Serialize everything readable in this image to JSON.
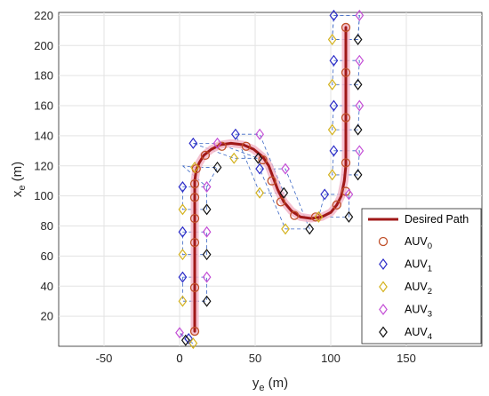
{
  "chart_data": {
    "type": "scatter",
    "xlabel": "y",
    "xlabel_sub": "e",
    "xlabel_unit": " (m)",
    "ylabel": "x",
    "ylabel_sub": "e",
    "ylabel_unit": " (m)",
    "xlim": [
      -80,
      200
    ],
    "ylim": [
      0,
      222
    ],
    "xticks": [
      -50,
      0,
      50,
      100,
      150
    ],
    "yticks": [
      20,
      40,
      60,
      80,
      100,
      120,
      140,
      160,
      180,
      200,
      220
    ],
    "grid": true,
    "legend_position": "bottom-right",
    "colors": {
      "path": "#a01818",
      "path_glow": "#f2b6c8",
      "auv0": "#c0502a",
      "auv1": "#2c2cc8",
      "auv2": "#d4b21f",
      "auv3": "#c44fd6",
      "auv4": "#111111",
      "link": "#3a66c4"
    },
    "desired_path": {
      "name": "Desired Path",
      "x": [
        10,
        10,
        10,
        10,
        10,
        10,
        11,
        13,
        16,
        21,
        27,
        34,
        42,
        49,
        55,
        59,
        62,
        65,
        69,
        74,
        80,
        87,
        94,
        100,
        104,
        107,
        109,
        110,
        110,
        110,
        110,
        110,
        110
      ],
      "y": [
        10,
        40,
        70,
        90,
        100,
        110,
        117,
        122,
        127,
        131,
        134,
        135,
        134,
        131,
        126,
        120,
        112,
        104,
        96,
        90,
        86,
        85,
        86,
        89,
        94,
        100,
        110,
        120,
        140,
        160,
        180,
        200,
        212
      ]
    },
    "series": [
      {
        "name": "AUV",
        "sub": "0",
        "marker": "circle",
        "x": [
          10,
          10,
          10,
          10,
          10,
          10,
          11,
          17,
          28,
          44,
          55,
          61,
          67,
          76,
          90,
          104,
          110,
          110,
          110,
          110,
          110
        ],
        "y": [
          10,
          39,
          69,
          85,
          99,
          108,
          118,
          127,
          133,
          133,
          124,
          110,
          96,
          87,
          86,
          94,
          103,
          122,
          152,
          182,
          212
        ]
      },
      {
        "name": "AUV",
        "sub": "1",
        "marker": "diamond",
        "x": [
          6,
          2,
          2,
          2,
          2,
          9,
          37,
          53,
          96,
          102,
          102,
          102,
          102,
          102
        ],
        "y": [
          5,
          46,
          76,
          106,
          120,
          135,
          141,
          118,
          101,
          130,
          160,
          190,
          220,
          220
        ],
        "skip": [
          4,
          13
        ]
      },
      {
        "name": "AUV",
        "sub": "2",
        "marker": "diamond",
        "x": [
          9,
          2,
          2,
          2,
          10,
          36,
          53,
          70,
          92,
          101,
          101,
          101,
          101,
          101
        ],
        "y": [
          2,
          30,
          61,
          91,
          119,
          125,
          102,
          78,
          86,
          114,
          144,
          174,
          204,
          204
        ],
        "skip": [
          13
        ]
      },
      {
        "name": "AUV",
        "sub": "3",
        "marker": "diamond",
        "x": [
          0,
          18,
          18,
          18,
          18,
          25,
          53,
          70,
          112,
          119,
          119,
          119,
          119,
          119
        ],
        "y": [
          9,
          46,
          76,
          106,
          106,
          135,
          141,
          118,
          101,
          130,
          160,
          190,
          220,
          220
        ],
        "skip": [
          4,
          13
        ]
      },
      {
        "name": "AUV",
        "sub": "4",
        "marker": "diamond",
        "x": [
          4,
          18,
          18,
          18,
          25,
          52,
          69,
          86,
          112,
          118,
          118,
          118,
          118,
          118
        ],
        "y": [
          4,
          30,
          61,
          91,
          119,
          125,
          102,
          78,
          86,
          114,
          144,
          174,
          204,
          204
        ],
        "skip": [
          13
        ]
      }
    ]
  }
}
